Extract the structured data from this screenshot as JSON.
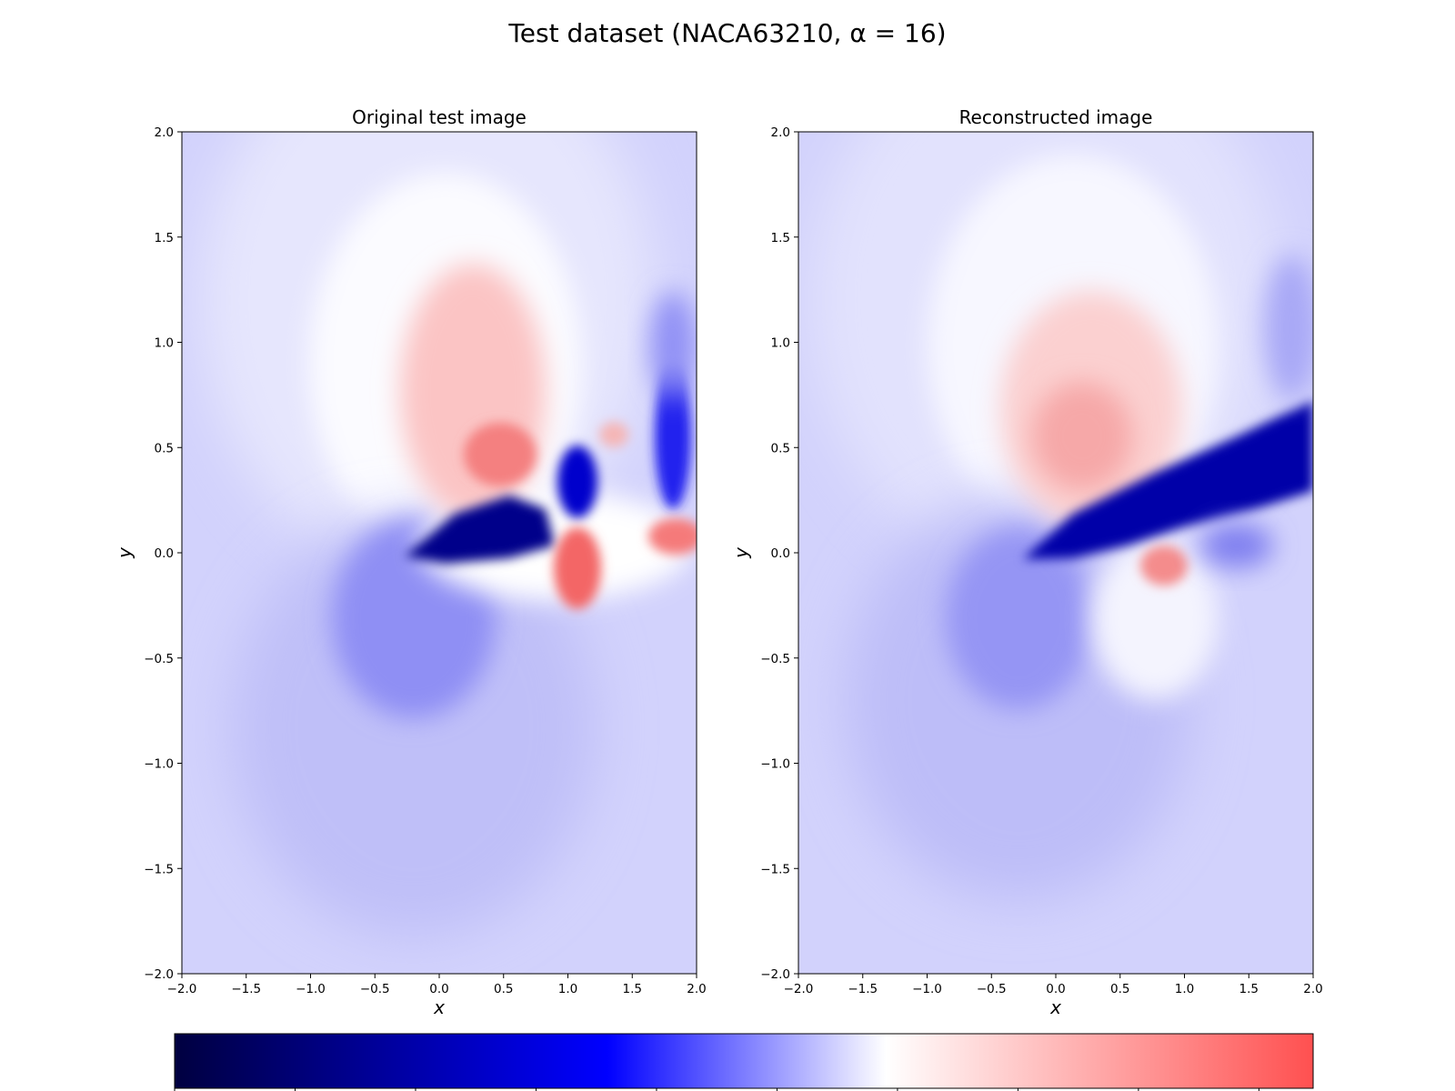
{
  "figure": {
    "title": "Test dataset (NACA63210, α = 16)"
  },
  "chart_data": [
    {
      "type": "heatmap",
      "title": "Original test image",
      "xlabel": "x",
      "ylabel": "y",
      "xlim": [
        -2.0,
        2.0
      ],
      "ylim": [
        -2.0,
        2.0
      ],
      "xticks": [
        "−2.0",
        "−1.5",
        "−1.0",
        "−0.5",
        "0.0",
        "0.5",
        "1.0",
        "1.5",
        "2.0"
      ],
      "yticks": [
        "2.0",
        "1.5",
        "1.0",
        "0.5",
        "0.0",
        "−0.5",
        "−1.0",
        "−1.5",
        "−2.0"
      ],
      "colormap": "bwr",
      "features": [
        {
          "kind": "suction-lobe",
          "x": 0.35,
          "y": 0.55,
          "intensity": 0.6
        },
        {
          "kind": "wake-dark",
          "x": 0.25,
          "y": 0.1,
          "intensity": -0.95
        },
        {
          "kind": "pressure-lobe",
          "x": -0.1,
          "y": -0.45,
          "intensity": -0.45
        },
        {
          "kind": "vortex-red",
          "x": 1.05,
          "y": -0.05,
          "intensity": 0.6
        },
        {
          "kind": "vortex-red",
          "x": 1.8,
          "y": 0.05,
          "intensity": 0.55
        },
        {
          "kind": "vortex-red",
          "x": 1.35,
          "y": 0.55,
          "intensity": 0.35
        },
        {
          "kind": "vortex-blue",
          "x": 1.05,
          "y": 0.35,
          "intensity": -0.8
        },
        {
          "kind": "vortex-blue",
          "x": 1.75,
          "y": 0.5,
          "intensity": -0.7
        }
      ]
    },
    {
      "type": "heatmap",
      "title": "Reconstructed image",
      "xlabel": "x",
      "ylabel": "y",
      "xlim": [
        -2.0,
        2.0
      ],
      "ylim": [
        -2.0,
        2.0
      ],
      "xticks": [
        "−2.0",
        "−1.5",
        "−1.0",
        "−0.5",
        "0.0",
        "0.5",
        "1.0",
        "1.5",
        "2.0"
      ],
      "yticks": [
        "2.0",
        "1.5",
        "1.0",
        "0.5",
        "0.0",
        "−0.5",
        "−1.0",
        "−1.5",
        "−2.0"
      ],
      "colormap": "bwr",
      "features": [
        {
          "kind": "suction-lobe",
          "x": 0.45,
          "y": 0.6,
          "intensity": 0.45
        },
        {
          "kind": "wake-dark",
          "x": 1.0,
          "y": 0.3,
          "intensity": -0.95
        },
        {
          "kind": "pressure-lobe",
          "x": -0.1,
          "y": -0.45,
          "intensity": -0.45
        },
        {
          "kind": "vortex-red",
          "x": 0.95,
          "y": -0.05,
          "intensity": 0.45
        },
        {
          "kind": "vortex-blue",
          "x": 1.9,
          "y": 1.0,
          "intensity": -0.4
        }
      ]
    }
  ],
  "colorbar": {
    "colormap": "bwr",
    "range": [
      -1.0,
      0.6
    ],
    "ticks": 10
  }
}
